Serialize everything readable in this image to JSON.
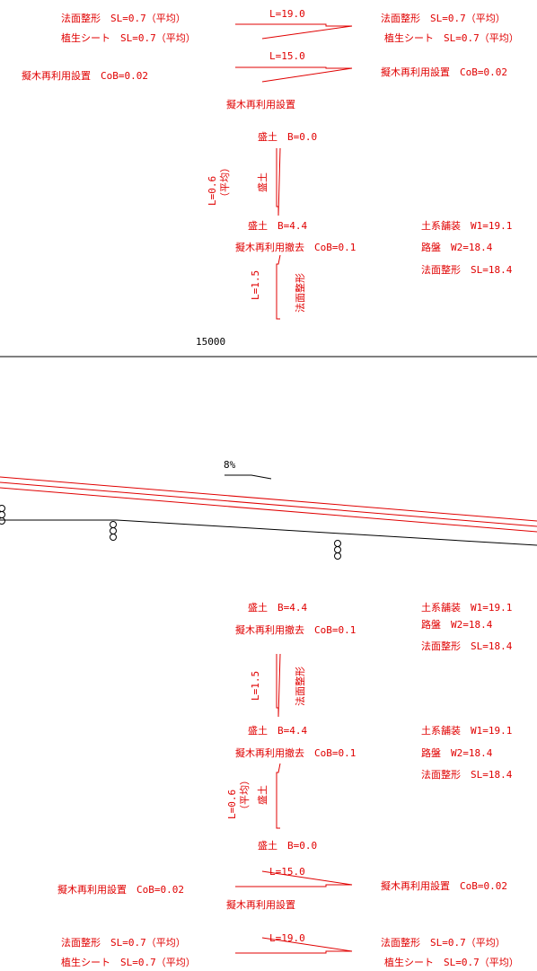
{
  "colors": {
    "annotation": "#e00000",
    "linework": "#000000",
    "background": "#ffffff"
  },
  "top": {
    "left_slope_1": "法面整形　SL=0.7（平均）",
    "left_slope_2": "植生シート　SL=0.7（平均）",
    "right_slope_1": "法面整形　SL=0.7（平均）",
    "right_slope_2": "植生シート　SL=0.7（平均）",
    "length_upper": "L=19.0",
    "length_lower": "L=15.0",
    "left_reuse": "擬木再利用設置　CoB=0.02",
    "right_reuse": "擬木再利用設置　CoB=0.02",
    "center_reuse": "擬木再利用設置",
    "fill_b0": "盛土　B=0.0",
    "vertical_length_avg": "L=0.6",
    "vertical_avg_note": "（平均）",
    "vertical_fill": "盛土",
    "fill_b44": "盛土　B=4.4",
    "removal": "擬木再利用撤去　CoB=0.1",
    "vertical_length": "L=1.5",
    "vertical_slope": "法面整形",
    "paving": "土系舗装　W1=19.1",
    "roadbed": "路盤　W2=18.4",
    "slope_right": "法面整形　SL=18.4",
    "dimension": "15000"
  },
  "profile": {
    "grade": "8%"
  },
  "bottom": {
    "fill_b44_a": "盛土　B=4.4",
    "removal_a": "擬木再利用撤去　CoB=0.1",
    "paving_a": "土系舗装　W1=19.1",
    "roadbed_a": "路盤　W2=18.4",
    "slope_right_a": "法面整形　SL=18.4",
    "vertical_length": "L=1.5",
    "vertical_slope": "法面整形",
    "fill_b44_b": "盛土　B=4.4",
    "removal_b": "擬木再利用撤去　CoB=0.1",
    "paving_b": "土系舗装　W1=19.1",
    "roadbed_b": "路盤　W2=18.4",
    "slope_right_b": "法面整形　SL=18.4",
    "vertical_length_avg": "L=0.6",
    "vertical_avg_note": "（平均）",
    "vertical_fill": "盛土",
    "fill_b0": "盛土　B=0.0",
    "length_upper": "L=15.0",
    "left_reuse": "擬木再利用設置　CoB=0.02",
    "right_reuse": "擬木再利用設置　CoB=0.02",
    "center_reuse": "擬木再利用設置",
    "length_lower": "L=19.0",
    "left_slope_1": "法面整形　SL=0.7（平均）",
    "left_slope_2": "植生シート　SL=0.7（平均）",
    "right_slope_1": "法面整形　SL=0.7（平均）",
    "right_slope_2": "植生シート　SL=0.7（平均）"
  }
}
